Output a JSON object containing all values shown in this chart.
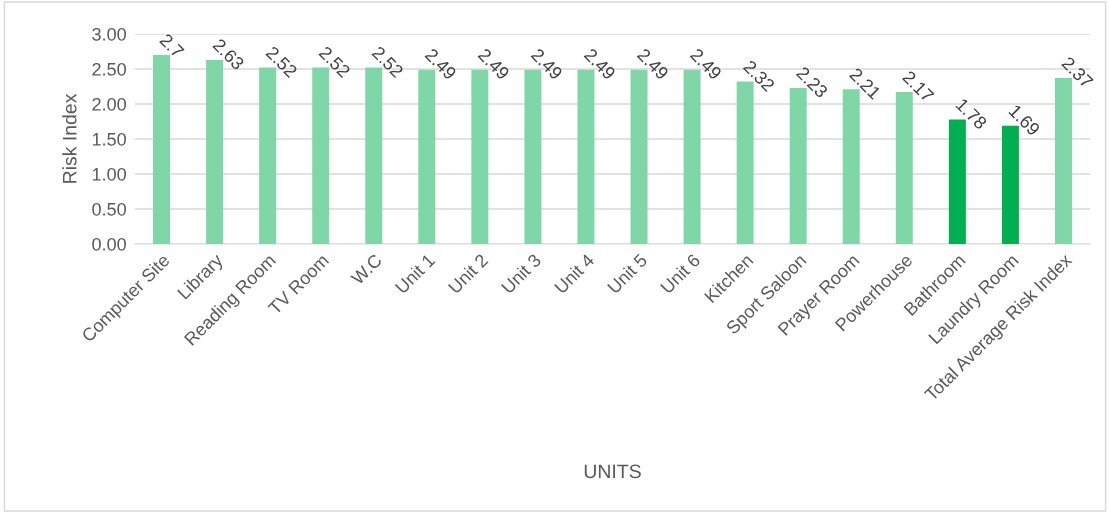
{
  "chart_data": {
    "type": "bar",
    "xlabel": "UNITS",
    "ylabel": "Risk Index",
    "categories": [
      "Computer Site",
      "Library",
      "Reading Room",
      "TV Room",
      "W.C",
      "Unit 1",
      "Unit 2",
      "Unit 3",
      "Unit 4",
      "Unit 5",
      "Unit 6",
      "Kitchen",
      "Sport Saloon",
      "Prayer Room",
      "Powerhouse",
      "Bathroom",
      "Laundry Room",
      "Total Average Risk Index"
    ],
    "values": [
      2.7,
      2.63,
      2.52,
      2.52,
      2.52,
      2.49,
      2.49,
      2.49,
      2.49,
      2.49,
      2.49,
      2.32,
      2.23,
      2.21,
      2.17,
      1.78,
      1.69,
      2.37
    ],
    "value_labels": [
      "2.7",
      "2.63",
      "2.52",
      "2.52",
      "2.52",
      "2.49",
      "2.49",
      "2.49",
      "2.49",
      "2.49",
      "2.49",
      "2.32",
      "2.23",
      "2.21",
      "2.17",
      "1.78",
      "1.69",
      "2.37"
    ],
    "colors": [
      "#7fd7a7",
      "#7fd7a7",
      "#7fd7a7",
      "#7fd7a7",
      "#7fd7a7",
      "#7fd7a7",
      "#7fd7a7",
      "#7fd7a7",
      "#7fd7a7",
      "#7fd7a7",
      "#7fd7a7",
      "#7fd7a7",
      "#7fd7a7",
      "#7fd7a7",
      "#7fd7a7",
      "#00b050",
      "#00b050",
      "#7fd7a7"
    ],
    "ylim": [
      0,
      3
    ],
    "yticks": [
      "0.00",
      "0.50",
      "1.00",
      "1.50",
      "2.00",
      "2.50",
      "3.00"
    ],
    "grid": "y",
    "legend": false
  }
}
